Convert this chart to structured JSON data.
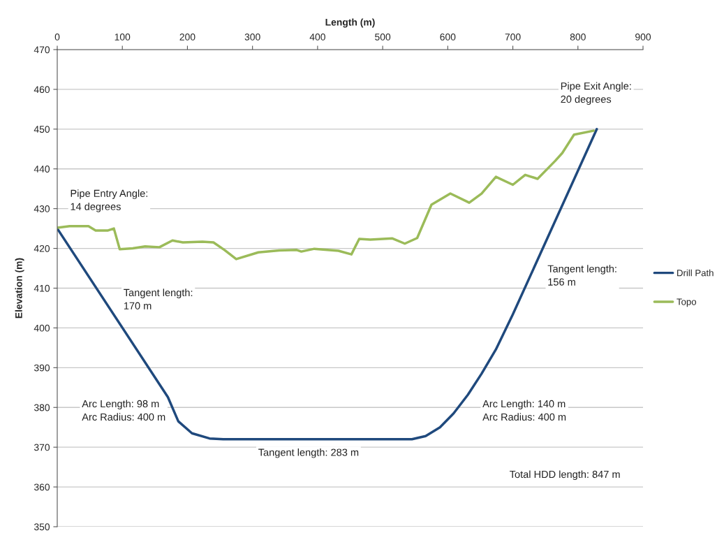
{
  "chart_data": {
    "type": "line",
    "xlabel": "Length (m)",
    "ylabel": "Elevation (m)",
    "xlim": [
      0,
      900
    ],
    "xticks": [
      0,
      100,
      200,
      300,
      400,
      500,
      600,
      700,
      800,
      900
    ],
    "ylim": [
      350,
      470
    ],
    "yticks": [
      350,
      360,
      370,
      380,
      390,
      400,
      410,
      420,
      430,
      440,
      450,
      460,
      470
    ],
    "grid": "y",
    "legend": "right",
    "marker": "none",
    "line_style": "solid",
    "series": [
      {
        "name": "Drill Path",
        "color": "#1f497d",
        "x": [
          0,
          170,
          186,
          207,
          234,
          255,
          545,
          566,
          588,
          609,
          631,
          652,
          674,
          700,
          829
        ],
        "values": [
          425,
          382.6,
          376.5,
          373.5,
          372.2,
          372,
          372,
          372.8,
          375,
          378.5,
          383.2,
          388.5,
          394.6,
          403.4,
          450
        ]
      },
      {
        "name": "Topo",
        "color": "#9bbb59",
        "x": [
          0,
          19,
          48,
          59,
          78,
          87,
          96,
          116,
          135,
          157,
          177,
          193,
          223,
          240,
          257,
          275,
          309,
          341,
          368,
          375,
          395,
          432,
          452,
          464,
          481,
          515,
          534,
          553,
          575,
          604,
          633,
          652,
          674,
          700,
          719,
          738,
          765,
          776,
          794,
          824
        ],
        "values": [
          425.2,
          425.6,
          425.6,
          424.5,
          424.5,
          425,
          419.8,
          420,
          420.5,
          420.3,
          422,
          421.5,
          421.7,
          421.5,
          419.6,
          417.3,
          419,
          419.5,
          419.6,
          419.2,
          419.9,
          419.4,
          418.5,
          422.4,
          422.2,
          422.5,
          421.2,
          422.6,
          431,
          433.8,
          431.5,
          433.8,
          438,
          436,
          438.5,
          437.5,
          442,
          444,
          448.6,
          449.6
        ]
      }
    ],
    "annotations": [
      "Pipe Entry Angle:\n14 degrees",
      "Tangent length:\n170 m",
      "Arc Length: 98 m\nArc Radius: 400 m",
      "Tangent length: 283 m",
      "Arc Length: 140 m\nArc Radius: 400 m",
      "Tangent length:\n156 m",
      "Pipe Exit Angle:\n20 degrees",
      "Total HDD length: 847 m"
    ]
  }
}
